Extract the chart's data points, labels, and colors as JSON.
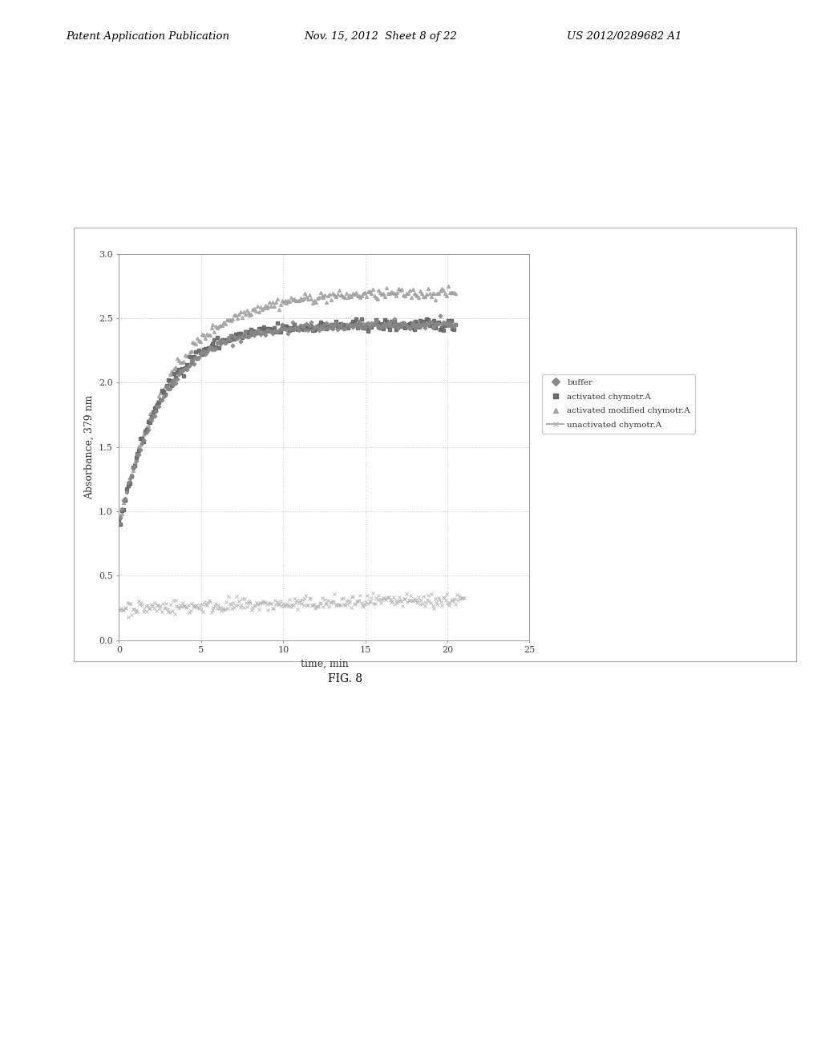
{
  "title": "",
  "xlabel": "time, min",
  "ylabel": "Absorbance, 379 nm",
  "xlim": [
    0,
    25
  ],
  "ylim": [
    0,
    3
  ],
  "xticks": [
    0,
    5,
    10,
    15,
    20,
    25
  ],
  "yticks": [
    0,
    0.5,
    1,
    1.5,
    2,
    2.5,
    3
  ],
  "header_line1": "Patent Application Publication",
  "header_date": "Nov. 15, 2012  Sheet 8 of 22",
  "header_patent": "US 2012/0289682 A1",
  "figure_label": "FIG. 8",
  "legend_labels": [
    "buffer",
    "activated chymotr.A",
    "activated modified chymotr.A",
    "unactivated chymotr.A"
  ],
  "noise_seed": 42,
  "background_color": "#ffffff",
  "plot_bg_color": "#ffffff",
  "grid_color": "#bbbbbb",
  "border_color": "#999999"
}
